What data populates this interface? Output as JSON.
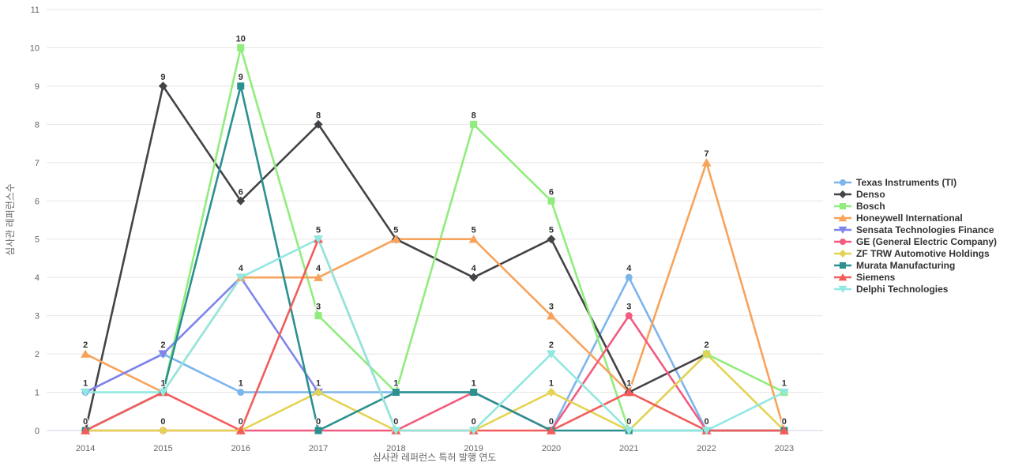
{
  "chart_data": {
    "type": "line",
    "title": "",
    "xlabel": "심사관 레퍼런스 특허 발행 연도",
    "ylabel": "심사관 레퍼런스수",
    "x": [
      2014,
      2015,
      2016,
      2017,
      2018,
      2019,
      2020,
      2021,
      2022,
      2023
    ],
    "ylim": [
      0,
      11
    ],
    "yticks": [
      0,
      1,
      2,
      3,
      4,
      5,
      6,
      7,
      8,
      9,
      10,
      11
    ],
    "grid": "horizontal-only",
    "legend_position": "right",
    "data_labels": "on",
    "series": [
      {
        "name": "Texas Instruments (TI)",
        "color": "#7cb5ec",
        "marker": "circle",
        "values": [
          1,
          2,
          1,
          1,
          1,
          1,
          0,
          4,
          0,
          0
        ]
      },
      {
        "name": "Denso",
        "color": "#434348",
        "marker": "diamond",
        "values": [
          0,
          9,
          6,
          8,
          5,
          4,
          5,
          1,
          2,
          null
        ]
      },
      {
        "name": "Bosch",
        "color": "#90ed7d",
        "marker": "square",
        "values": [
          0,
          1,
          10,
          3,
          1,
          8,
          6,
          0,
          2,
          1
        ]
      },
      {
        "name": "Honeywell International",
        "color": "#f7a35c",
        "marker": "triangle",
        "values": [
          2,
          1,
          4,
          4,
          5,
          5,
          3,
          1,
          7,
          0
        ]
      },
      {
        "name": "Sensata Technologies Finance",
        "color": "#8085e9",
        "marker": "triangle-down",
        "values": [
          1,
          2,
          4,
          1,
          null,
          null,
          null,
          null,
          null,
          null
        ]
      },
      {
        "name": "GE (General Electric Company)",
        "color": "#f15c80",
        "marker": "circle",
        "values": [
          0,
          0,
          0,
          0,
          0,
          1,
          0,
          3,
          0,
          0
        ]
      },
      {
        "name": "ZF TRW Automotive Holdings",
        "color": "#e4d354",
        "marker": "diamond",
        "values": [
          0,
          0,
          0,
          1,
          0,
          0,
          1,
          0,
          2,
          0
        ]
      },
      {
        "name": "Murata Manufacturing",
        "color": "#2b908f",
        "marker": "square",
        "values": [
          0,
          1,
          9,
          0,
          1,
          1,
          0,
          0,
          0,
          0
        ]
      },
      {
        "name": "Siemens",
        "color": "#f45b5b",
        "marker": "triangle",
        "values": [
          0,
          1,
          0,
          5,
          0,
          0,
          0,
          1,
          0,
          0
        ]
      },
      {
        "name": "Delphi Technologies",
        "color": "#91e8e1",
        "marker": "triangle-down",
        "values": [
          1,
          1,
          4,
          5,
          0,
          0,
          2,
          0,
          0,
          1
        ]
      }
    ]
  },
  "style": {
    "background": "#ffffff",
    "grid_color": "#e6e6e6",
    "axis_line_color": "#ccd6eb",
    "tick_label_color": "#666666",
    "axis_title_color": "#666666",
    "data_label_color": "#2f2f2f",
    "legend_text_color": "#333333"
  }
}
